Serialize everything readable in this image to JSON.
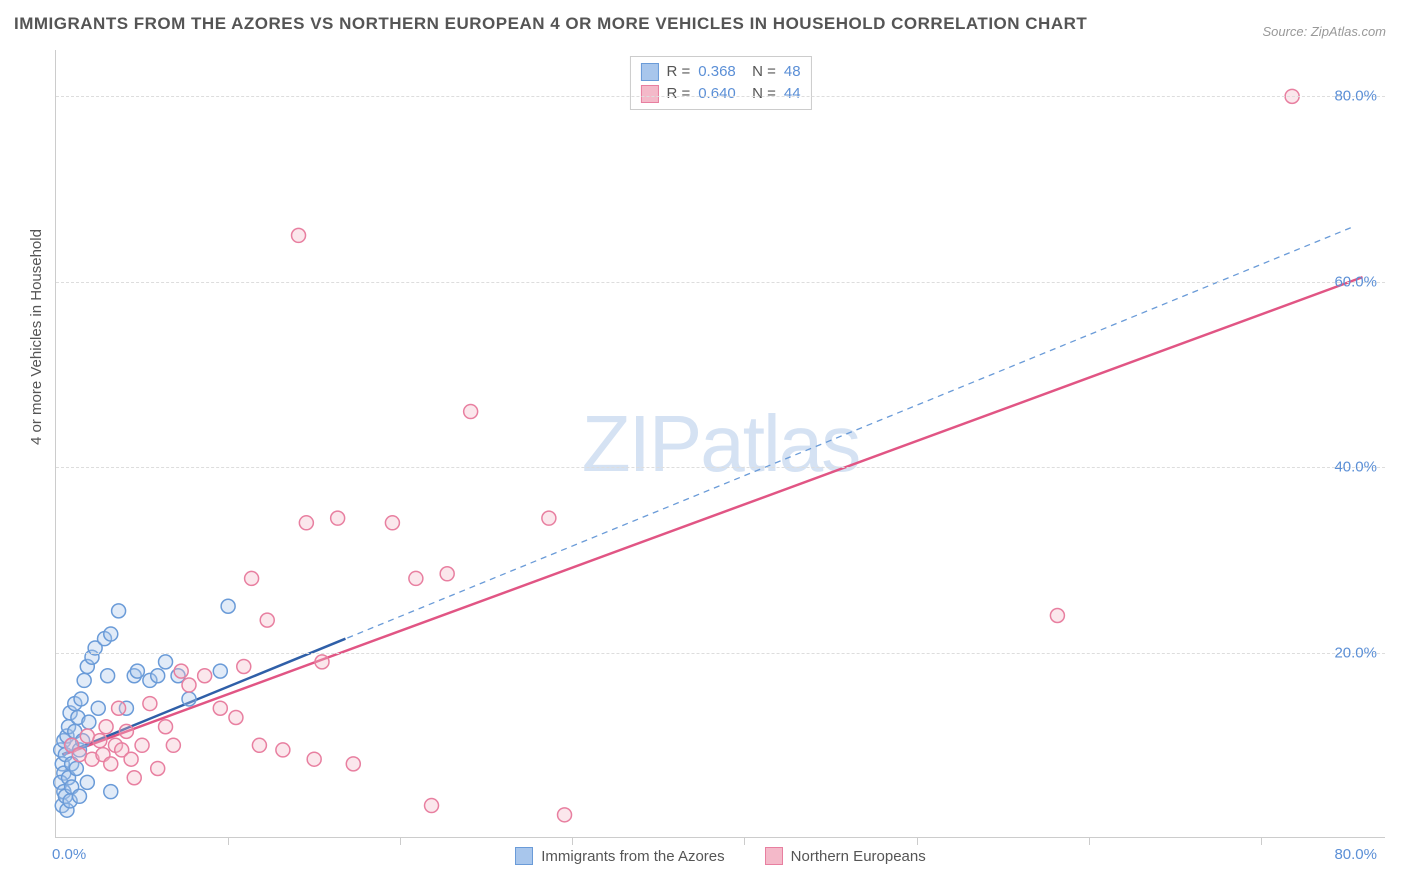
{
  "title": "IMMIGRANTS FROM THE AZORES VS NORTHERN EUROPEAN 4 OR MORE VEHICLES IN HOUSEHOLD CORRELATION CHART",
  "source": "Source: ZipAtlas.com",
  "watermark": "ZIPatlas",
  "ylabel": "4 or more Vehicles in Household",
  "chart": {
    "type": "scatter-with-regression",
    "background_color": "#ffffff",
    "grid_color": "#dddddd",
    "axis_color": "#cccccc",
    "tick_label_color": "#5b8fd6",
    "tick_fontsize": 15,
    "xlim": [
      0,
      85
    ],
    "ylim": [
      0,
      85
    ],
    "yticks": [
      20,
      40,
      60,
      80
    ],
    "ytick_labels": [
      "20.0%",
      "40.0%",
      "60.0%",
      "80.0%"
    ],
    "xticks_major": [
      11,
      22,
      33,
      44,
      55,
      66,
      77
    ],
    "x_origin_label": "0.0%",
    "x_end_label": "80.0%",
    "marker_radius": 7,
    "marker_stroke_width": 1.5,
    "marker_fill_opacity": 0.35,
    "series": [
      {
        "name": "Immigrants from the Azores",
        "color_fill": "#a8c6ec",
        "color_stroke": "#6a9bd8",
        "R": "0.368",
        "N": "48",
        "trend": {
          "style": "solid",
          "color": "#2f5fa8",
          "width": 2.5,
          "x1": 0.4,
          "y1": 9.0,
          "x2": 18.5,
          "y2": 21.5
        },
        "trend_dashed_extension": {
          "style": "dashed",
          "color": "#6a9bd8",
          "width": 1.3,
          "x1": 0.4,
          "y1": 9.0,
          "x2": 83.0,
          "y2": 66.0
        },
        "points": [
          [
            0.3,
            9.5
          ],
          [
            0.5,
            10.5
          ],
          [
            0.4,
            8.0
          ],
          [
            0.7,
            11.0
          ],
          [
            0.8,
            12.0
          ],
          [
            0.6,
            9.0
          ],
          [
            0.5,
            7.0
          ],
          [
            0.9,
            13.5
          ],
          [
            1.0,
            10.0
          ],
          [
            0.3,
            6.0
          ],
          [
            1.2,
            14.5
          ],
          [
            1.4,
            13.0
          ],
          [
            1.0,
            8.0
          ],
          [
            0.5,
            5.0
          ],
          [
            1.6,
            15.0
          ],
          [
            1.8,
            17.0
          ],
          [
            1.2,
            11.5
          ],
          [
            2.0,
            18.5
          ],
          [
            2.3,
            19.5
          ],
          [
            1.5,
            9.5
          ],
          [
            0.8,
            6.5
          ],
          [
            0.4,
            3.5
          ],
          [
            2.5,
            20.5
          ],
          [
            1.3,
            7.5
          ],
          [
            0.6,
            4.5
          ],
          [
            3.1,
            21.5
          ],
          [
            2.1,
            12.5
          ],
          [
            1.0,
            5.5
          ],
          [
            3.5,
            22.0
          ],
          [
            1.7,
            10.5
          ],
          [
            2.7,
            14.0
          ],
          [
            0.7,
            3.0
          ],
          [
            4.0,
            24.5
          ],
          [
            0.9,
            4.0
          ],
          [
            3.3,
            17.5
          ],
          [
            2.0,
            6.0
          ],
          [
            1.5,
            4.5
          ],
          [
            5.0,
            17.5
          ],
          [
            5.2,
            18.0
          ],
          [
            4.5,
            14.0
          ],
          [
            6.0,
            17.0
          ],
          [
            6.5,
            17.5
          ],
          [
            7.0,
            19.0
          ],
          [
            7.8,
            17.5
          ],
          [
            8.5,
            15.0
          ],
          [
            11.0,
            25.0
          ],
          [
            10.5,
            18.0
          ],
          [
            3.5,
            5.0
          ]
        ]
      },
      {
        "name": "Northern Europeans",
        "color_fill": "#f4b9c9",
        "color_stroke": "#e87fa0",
        "R": "0.640",
        "N": "44",
        "trend": {
          "style": "solid",
          "color": "#e15584",
          "width": 2.5,
          "x1": 0.5,
          "y1": 9.0,
          "x2": 83.5,
          "y2": 60.5
        },
        "points": [
          [
            1.0,
            10.0
          ],
          [
            1.5,
            9.0
          ],
          [
            2.0,
            11.0
          ],
          [
            2.3,
            8.5
          ],
          [
            2.8,
            10.5
          ],
          [
            3.0,
            9.0
          ],
          [
            3.2,
            12.0
          ],
          [
            3.5,
            8.0
          ],
          [
            3.8,
            10.0
          ],
          [
            4.0,
            14.0
          ],
          [
            4.2,
            9.5
          ],
          [
            4.5,
            11.5
          ],
          [
            4.8,
            8.5
          ],
          [
            5.5,
            10.0
          ],
          [
            6.0,
            14.5
          ],
          [
            7.0,
            12.0
          ],
          [
            7.5,
            10.0
          ],
          [
            8.0,
            18.0
          ],
          [
            8.5,
            16.5
          ],
          [
            9.5,
            17.5
          ],
          [
            10.5,
            14.0
          ],
          [
            11.5,
            13.0
          ],
          [
            12.0,
            18.5
          ],
          [
            12.5,
            28.0
          ],
          [
            13.0,
            10.0
          ],
          [
            13.5,
            23.5
          ],
          [
            14.5,
            9.5
          ],
          [
            16.0,
            34.0
          ],
          [
            17.0,
            19.0
          ],
          [
            18.0,
            34.5
          ],
          [
            15.5,
            65.0
          ],
          [
            21.5,
            34.0
          ],
          [
            23.0,
            28.0
          ],
          [
            24.0,
            3.5
          ],
          [
            25.0,
            28.5
          ],
          [
            26.5,
            46.0
          ],
          [
            31.5,
            34.5
          ],
          [
            32.5,
            2.5
          ],
          [
            19.0,
            8.0
          ],
          [
            16.5,
            8.5
          ],
          [
            64.0,
            24.0
          ],
          [
            79.0,
            80.0
          ],
          [
            5.0,
            6.5
          ],
          [
            6.5,
            7.5
          ]
        ]
      }
    ],
    "legend_bottom": [
      {
        "label": "Immigrants from the Azores",
        "fill": "#a8c6ec",
        "stroke": "#6a9bd8"
      },
      {
        "label": "Northern Europeans",
        "fill": "#f4b9c9",
        "stroke": "#e87fa0"
      }
    ]
  }
}
